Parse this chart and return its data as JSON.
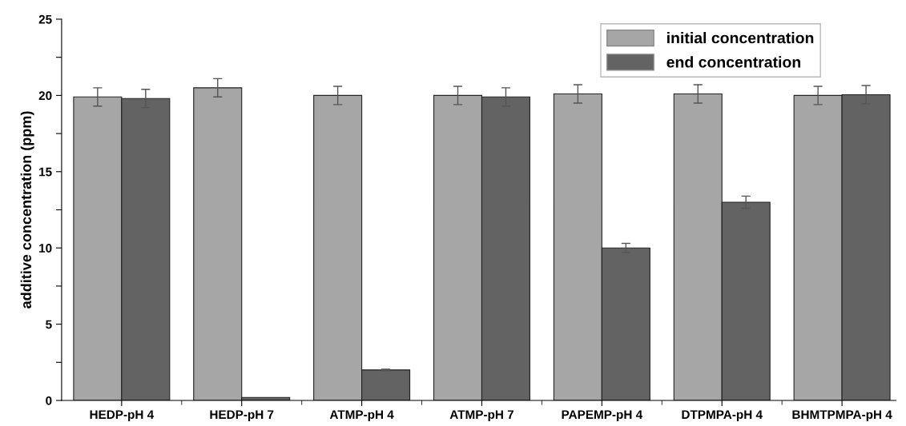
{
  "chart_data": {
    "type": "bar",
    "ylabel": "additive concentration (ppm)",
    "categories": [
      "HEDP-pH 4",
      "HEDP-pH 7",
      "ATMP-pH 4",
      "ATMP-pH 7",
      "PAPEMP-pH 4",
      "DTPMPA-pH 4",
      "BHMTPMPA-pH 4"
    ],
    "series": [
      {
        "name": "initial concentration",
        "color": "#a6a6a6",
        "values": [
          19.9,
          20.5,
          20.0,
          20.0,
          20.1,
          20.1,
          20.0
        ],
        "errors": [
          0.6,
          0.6,
          0.6,
          0.6,
          0.6,
          0.6,
          0.6
        ]
      },
      {
        "name": "end concentration",
        "color": "#636363",
        "values": [
          19.8,
          0.2,
          2.0,
          19.9,
          10.0,
          13.0,
          20.05
        ],
        "errors": [
          0.6,
          null,
          0.05,
          0.6,
          0.3,
          0.4,
          0.6
        ]
      }
    ],
    "ylim": [
      0,
      25
    ],
    "yticks": [
      0,
      {
        "value": 2.5,
        "label": null
      },
      5,
      {
        "value": 7.5,
        "label": null
      },
      10,
      {
        "value": 12.5,
        "label": null
      },
      15,
      {
        "value": 17.5,
        "label": null
      },
      20,
      {
        "value": 22.5,
        "label": null
      },
      25
    ],
    "grid": false,
    "legend": "top right"
  }
}
